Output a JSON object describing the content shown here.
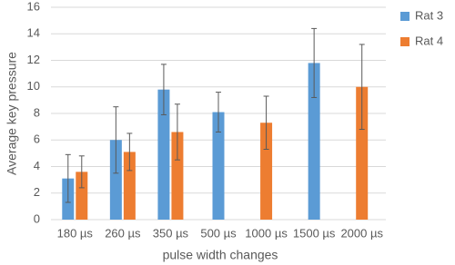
{
  "chart_data": {
    "type": "bar",
    "x_label": "pulse width changes",
    "y_label": "Average key pressure",
    "categories": [
      "180 µs",
      "260 µs",
      "350 µs",
      "500 µs",
      "1000 µs",
      "1500 µs",
      "2000 µs"
    ],
    "series": [
      {
        "name": "Rat 3",
        "color": "#5b9bd5",
        "values": [
          3.1,
          6.0,
          9.8,
          8.1,
          null,
          11.8,
          null
        ],
        "errors": [
          1.8,
          2.5,
          1.9,
          1.5,
          null,
          2.6,
          null
        ]
      },
      {
        "name": "Rat 4",
        "color": "#ed7d31",
        "values": [
          3.6,
          5.1,
          6.6,
          null,
          7.3,
          null,
          10.0
        ],
        "errors": [
          1.2,
          1.4,
          2.1,
          null,
          2.0,
          null,
          3.2
        ]
      }
    ],
    "ylim": [
      0,
      16
    ],
    "yticks": [
      0,
      2,
      4,
      6,
      8,
      10,
      12,
      14,
      16
    ],
    "grid": true,
    "legend": "right"
  }
}
